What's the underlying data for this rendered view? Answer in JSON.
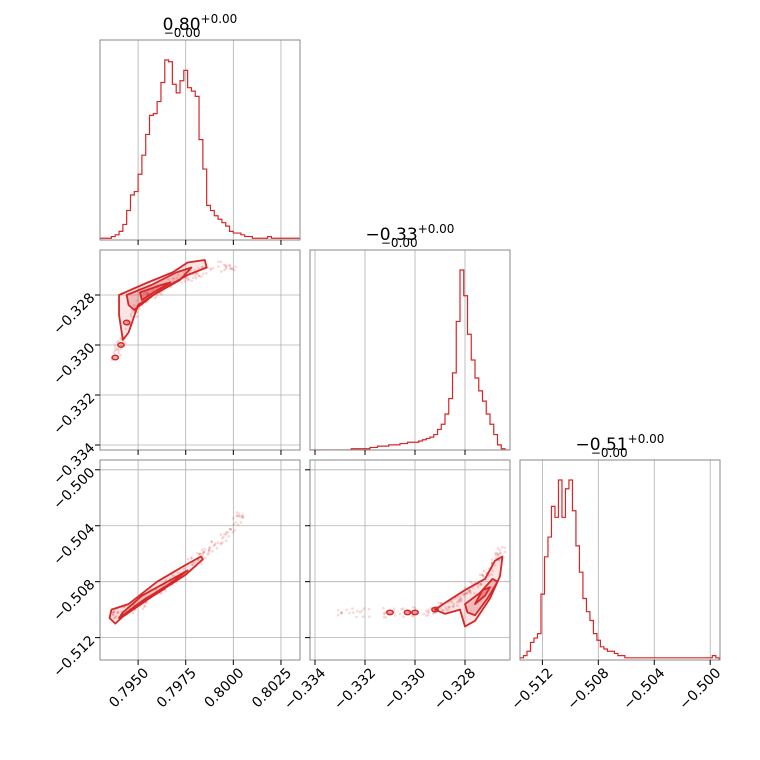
{
  "style": {
    "accent": "#d62728",
    "grid": "#b0b0b0",
    "frame": "#888888"
  },
  "chart_data": {
    "type": "corner",
    "parameters": [
      {
        "title_value": "0.80",
        "title_plus": "+0.00",
        "title_minus": "−0.00",
        "range": [
          0.793,
          0.8035
        ],
        "ticks": [
          0.795,
          0.7975,
          0.8,
          0.8025
        ],
        "tick_labels": [
          "0.7950",
          "0.7975",
          "0.8000",
          "0.8025"
        ]
      },
      {
        "title_value": "−0.33",
        "title_plus": "+0.00",
        "title_minus": "−0.00",
        "range": [
          -0.3342,
          -0.3262
        ],
        "ticks": [
          -0.334,
          -0.332,
          -0.33,
          -0.328
        ],
        "tick_labels": [
          "−0.334",
          "−0.332",
          "−0.330",
          "−0.328"
        ]
      },
      {
        "title_value": "−0.51",
        "title_plus": "+0.00",
        "title_minus": "−0.00",
        "range": [
          -0.5136,
          -0.4993
        ],
        "ticks": [
          -0.512,
          -0.508,
          -0.504,
          -0.5
        ],
        "tick_labels": [
          "−0.512",
          "−0.508",
          "−0.504",
          "−0.500"
        ]
      }
    ],
    "hist": [
      {
        "bin_start": 0.793,
        "bin_width": 0.0002,
        "counts": [
          1,
          1,
          1,
          2,
          3,
          5,
          9,
          17,
          26,
          28,
          38,
          49,
          61,
          72,
          73,
          80,
          91,
          104,
          103,
          90,
          85,
          92,
          98,
          88,
          86,
          83,
          58,
          41,
          20,
          17,
          14,
          12,
          10,
          8,
          5,
          4,
          4,
          3,
          2,
          2,
          1,
          1,
          1,
          1,
          2,
          1,
          1,
          1,
          1,
          1,
          1,
          1,
          1,
          1
        ]
      },
      {
        "bin_start": -0.3342,
        "bin_width": 0.00015,
        "counts": [
          0,
          0,
          0,
          0,
          0,
          0,
          0,
          0,
          0,
          0,
          0,
          1,
          1,
          1,
          1,
          1,
          2,
          2,
          3,
          3,
          3,
          4,
          4,
          4,
          5,
          5,
          6,
          6,
          6,
          7,
          8,
          9,
          10,
          12,
          16,
          20,
          28,
          40,
          60,
          100,
          140,
          120,
          90,
          70,
          56,
          46,
          38,
          28,
          20,
          12,
          4,
          1,
          0,
          0
        ]
      },
      {
        "bin_start": -0.5136,
        "bin_width": 0.00025,
        "counts": [
          1,
          2,
          4,
          8,
          10,
          12,
          30,
          47,
          56,
          70,
          65,
          82,
          65,
          78,
          82,
          68,
          52,
          40,
          28,
          22,
          18,
          12,
          9,
          6,
          5,
          4,
          4,
          3,
          2,
          2,
          1,
          1,
          1,
          1,
          1,
          1,
          1,
          1,
          1,
          1,
          1,
          1,
          1,
          1,
          1,
          1,
          1,
          1,
          1,
          1,
          1,
          1,
          1,
          1,
          1,
          2,
          1
        ]
      }
    ],
    "pairs": [
      {
        "x_param": 0,
        "y_param": 1,
        "ridge": [
          [
            0.7937,
            -0.3306
          ],
          [
            0.7944,
            -0.3295
          ],
          [
            0.795,
            -0.3284
          ],
          [
            0.7958,
            -0.3279
          ],
          [
            0.7968,
            -0.3275
          ],
          [
            0.7978,
            -0.3272
          ],
          [
            0.7988,
            -0.3269
          ],
          [
            0.8,
            -0.3268
          ]
        ],
        "contours": [
          [
            [
              0.794,
              -0.328
            ],
            [
              0.7955,
              -0.3275
            ],
            [
              0.7968,
              -0.3271
            ],
            [
              0.7976,
              -0.3267
            ],
            [
              0.7985,
              -0.3266
            ],
            [
              0.7986,
              -0.3269
            ],
            [
              0.7976,
              -0.3272
            ],
            [
              0.7962,
              -0.3278
            ],
            [
              0.795,
              -0.3284
            ],
            [
              0.7945,
              -0.3295
            ],
            [
              0.7942,
              -0.3298
            ],
            [
              0.794,
              -0.3288
            ]
          ],
          [
            [
              0.7944,
              -0.328
            ],
            [
              0.7957,
              -0.3276
            ],
            [
              0.797,
              -0.3271
            ],
            [
              0.7978,
              -0.3269
            ],
            [
              0.7972,
              -0.3274
            ],
            [
              0.7958,
              -0.328
            ],
            [
              0.7948,
              -0.3286
            ],
            [
              0.7945,
              -0.3284
            ]
          ],
          [
            [
              0.7951,
              -0.3279
            ],
            [
              0.7962,
              -0.3276
            ],
            [
              0.7967,
              -0.3275
            ],
            [
              0.7958,
              -0.3279
            ],
            [
              0.7952,
              -0.3282
            ]
          ]
        ],
        "blobs": [
          [
            0.7944,
            -0.3291
          ],
          [
            0.7941,
            -0.33
          ],
          [
            0.7938,
            -0.3305
          ]
        ]
      },
      {
        "x_param": 0,
        "y_param": 2,
        "ridge": [
          [
            0.7935,
            -0.5105
          ],
          [
            0.7945,
            -0.51
          ],
          [
            0.7955,
            -0.5093
          ],
          [
            0.7965,
            -0.5082
          ],
          [
            0.7975,
            -0.507
          ],
          [
            0.7985,
            -0.506
          ],
          [
            0.7995,
            -0.5048
          ],
          [
            0.8005,
            -0.503
          ]
        ],
        "contours": [
          [
            [
              0.7938,
              -0.511
            ],
            [
              0.7942,
              -0.5105
            ],
            [
              0.7958,
              -0.509
            ],
            [
              0.7975,
              -0.5075
            ],
            [
              0.7984,
              -0.5064
            ],
            [
              0.7983,
              -0.5062
            ],
            [
              0.7975,
              -0.5068
            ],
            [
              0.796,
              -0.508
            ],
            [
              0.7945,
              -0.5096
            ],
            [
              0.7936,
              -0.51
            ],
            [
              0.7935,
              -0.5106
            ]
          ],
          [
            [
              0.794,
              -0.5106
            ],
            [
              0.7952,
              -0.5094
            ],
            [
              0.7966,
              -0.5082
            ],
            [
              0.7976,
              -0.5072
            ],
            [
              0.7968,
              -0.5078
            ],
            [
              0.7952,
              -0.509
            ],
            [
              0.7942,
              -0.5102
            ]
          ],
          [
            [
              0.7946,
              -0.51
            ],
            [
              0.7958,
              -0.509
            ],
            [
              0.7964,
              -0.5085
            ],
            [
              0.7954,
              -0.5092
            ]
          ]
        ],
        "blobs": []
      },
      {
        "x_param": 1,
        "y_param": 2,
        "ridge": [
          [
            -0.3332,
            -0.5102
          ],
          [
            -0.331,
            -0.5102
          ],
          [
            -0.3295,
            -0.5101
          ],
          [
            -0.3285,
            -0.5096
          ],
          [
            -0.3278,
            -0.5086
          ],
          [
            -0.3272,
            -0.5076
          ],
          [
            -0.3268,
            -0.5066
          ],
          [
            -0.3265,
            -0.5056
          ]
        ],
        "contours": [
          [
            [
              -0.3282,
              -0.51
            ],
            [
              -0.328,
              -0.5112
            ],
            [
              -0.3276,
              -0.5108
            ],
            [
              -0.327,
              -0.5092
            ],
            [
              -0.3266,
              -0.5076
            ],
            [
              -0.3265,
              -0.5062
            ],
            [
              -0.3268,
              -0.5065
            ],
            [
              -0.3272,
              -0.5078
            ],
            [
              -0.328,
              -0.5086
            ],
            [
              -0.3287,
              -0.5094
            ],
            [
              -0.3292,
              -0.51
            ],
            [
              -0.3288,
              -0.5103
            ]
          ],
          [
            [
              -0.3279,
              -0.5102
            ],
            [
              -0.3276,
              -0.5104
            ],
            [
              -0.3271,
              -0.5092
            ],
            [
              -0.3267,
              -0.508
            ],
            [
              -0.3269,
              -0.5078
            ],
            [
              -0.3274,
              -0.5088
            ],
            [
              -0.328,
              -0.5096
            ]
          ],
          [
            [
              -0.3276,
              -0.5096
            ],
            [
              -0.3272,
              -0.509
            ],
            [
              -0.327,
              -0.5084
            ],
            [
              -0.3273,
              -0.5086
            ]
          ]
        ],
        "blobs": [
          [
            -0.3292,
            -0.51
          ],
          [
            -0.3303,
            -0.5102
          ],
          [
            -0.331,
            -0.5102
          ],
          [
            -0.33,
            -0.5102
          ]
        ]
      }
    ]
  }
}
